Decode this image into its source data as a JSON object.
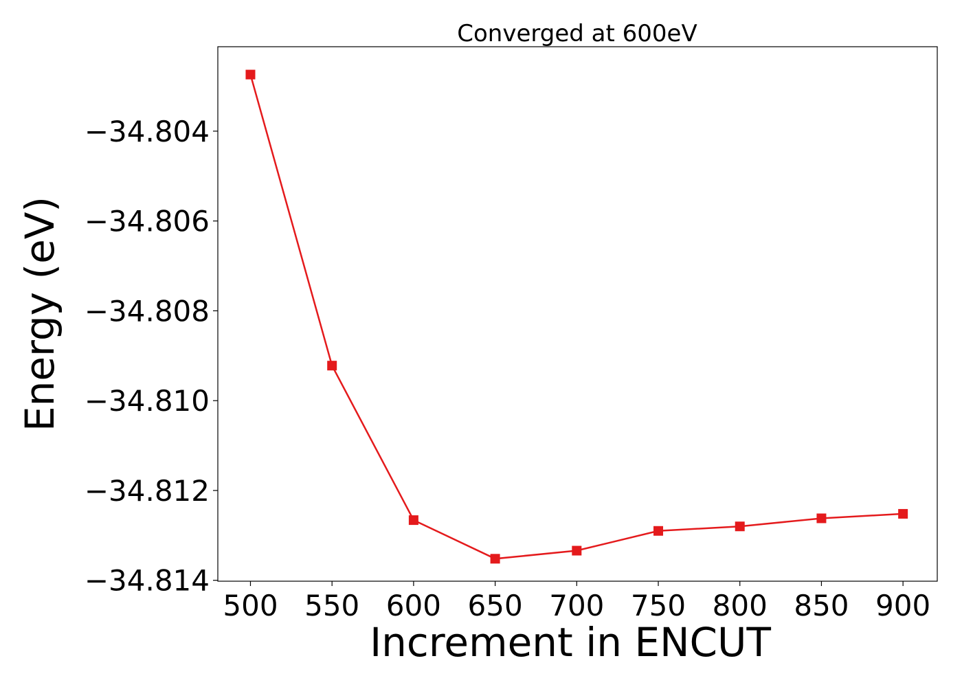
{
  "chart_data": {
    "type": "line",
    "title": "Converged at 600eV",
    "xlabel": "Increment in ENCUT",
    "ylabel": "Energy (eV)",
    "x": [
      500,
      550,
      600,
      650,
      700,
      750,
      800,
      850,
      900
    ],
    "y": [
      -34.80274,
      -34.80922,
      -34.81266,
      -34.81352,
      -34.81334,
      -34.8129,
      -34.8128,
      -34.81262,
      -34.81252
    ],
    "xticks": [
      "500",
      "550",
      "600",
      "650",
      "700",
      "750",
      "800",
      "850",
      "900"
    ],
    "yticks": [
      "−34.804",
      "−34.806",
      "−34.808",
      "−34.810",
      "−34.812",
      "−34.814"
    ],
    "ytick_values": [
      -34.804,
      -34.806,
      -34.808,
      -34.81,
      -34.812,
      -34.814
    ],
    "xlim": [
      480,
      921
    ],
    "ylim": [
      -34.81402,
      -34.80212
    ],
    "marker": "square",
    "grid": false,
    "colors": {
      "series": "#e41a1c"
    }
  }
}
